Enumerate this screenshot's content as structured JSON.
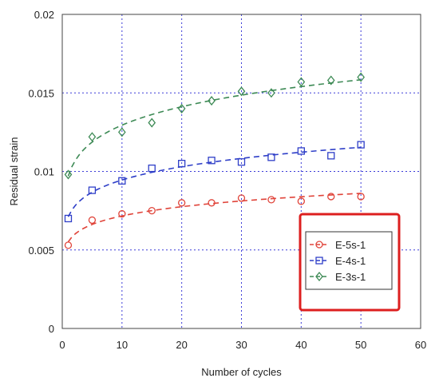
{
  "chart_data": {
    "type": "scatter",
    "xlabel": "Number of cycles",
    "ylabel": "Residual strain",
    "xlim": [
      0,
      60
    ],
    "ylim": [
      0,
      0.02
    ],
    "x_ticks": [
      "0",
      "10",
      "20",
      "30",
      "40",
      "50",
      "60"
    ],
    "y_ticks": [
      "0",
      "0.005",
      "0.01",
      "0.015",
      "0.02"
    ],
    "grid": true,
    "grid_style": "dotted",
    "legend_position": "lower-right",
    "legend_border_color": "#dd1f1f",
    "series": [
      {
        "name": "E-5s-1",
        "marker": "circle",
        "color": "#e0443a",
        "x": [
          1,
          5,
          10,
          15,
          20,
          25,
          30,
          35,
          40,
          45,
          50
        ],
        "y": [
          0.0053,
          0.0069,
          0.0073,
          0.0075,
          0.008,
          0.008,
          0.0083,
          0.0082,
          0.0081,
          0.0084,
          0.0084
        ]
      },
      {
        "name": "E-4s-1",
        "marker": "square",
        "color": "#2f3fc8",
        "x": [
          1,
          5,
          10,
          15,
          20,
          25,
          30,
          35,
          40,
          45,
          50
        ],
        "y": [
          0.007,
          0.0088,
          0.0094,
          0.0102,
          0.0105,
          0.0107,
          0.0106,
          0.0109,
          0.0113,
          0.011,
          0.0117
        ]
      },
      {
        "name": "E-3s-1",
        "marker": "diamond",
        "color": "#3d8a55",
        "x": [
          1,
          5,
          10,
          15,
          20,
          25,
          30,
          35,
          40,
          45,
          50
        ],
        "y": [
          0.0098,
          0.0122,
          0.0125,
          0.0131,
          0.014,
          0.0145,
          0.0151,
          0.015,
          0.0157,
          0.0158,
          0.016
        ]
      }
    ]
  }
}
